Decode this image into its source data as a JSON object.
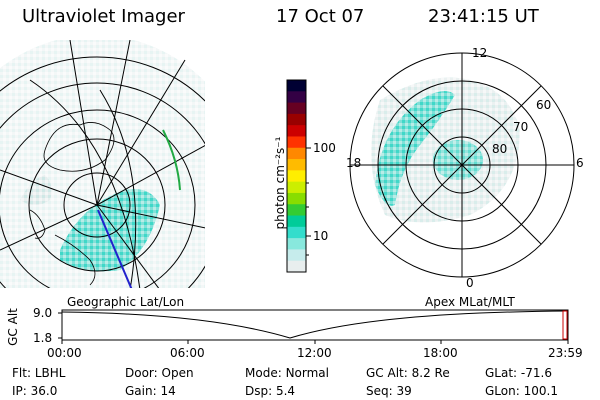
{
  "header": {
    "instrument": "Ultraviolet Imager",
    "date": "17 Oct 07",
    "time": "23:41:15 UT"
  },
  "left_panel": {
    "caption": "Geographic Lat/Lon"
  },
  "right_panel": {
    "caption": "Apex MLat/MLT",
    "mlt_labels": {
      "top": "12",
      "bottom": "0",
      "left": "18",
      "right": "6"
    },
    "lat_labels": [
      "60",
      "70",
      "80"
    ]
  },
  "colorbar": {
    "unit_label": "photon cm⁻²s⁻¹",
    "tick_labels": [
      "100",
      "10"
    ],
    "scale": "log",
    "colors": [
      "#000033",
      "#330044",
      "#660022",
      "#990000",
      "#cc0000",
      "#ff3300",
      "#ff8800",
      "#ffbb00",
      "#ffee00",
      "#ccee00",
      "#88dd00",
      "#33cc33",
      "#00cc99",
      "#33ddcc",
      "#88e8dd",
      "#c6ecec",
      "#e8eeee"
    ]
  },
  "altitude_plot": {
    "ylabel": "GC Alt",
    "y_ticks": [
      "9.0",
      "1.8"
    ],
    "x_ticks": [
      "00:00",
      "06:00",
      "12:00",
      "18:00",
      "23:59"
    ]
  },
  "info": {
    "row1": [
      {
        "label": "Flt:",
        "value": "LBHL"
      },
      {
        "label": "Door:",
        "value": "Open"
      },
      {
        "label": "Mode:",
        "value": "Normal"
      },
      {
        "label": "GC Alt:",
        "value": "8.2 Re"
      },
      {
        "label": "GLat:",
        "value": "-71.6"
      }
    ],
    "row2": [
      {
        "label": "IP:",
        "value": "36.0"
      },
      {
        "label": "Gain:",
        "value": "14"
      },
      {
        "label": "Dsp:",
        "value": "5.4"
      },
      {
        "label": "Seq:",
        "value": "39"
      },
      {
        "label": "GLon:",
        "value": "100.1"
      }
    ]
  },
  "accent_colors": {
    "auroral": "#40d8c8",
    "track": "#2222cc",
    "marker": "#cc0000",
    "oval_edge": "#22aa44"
  }
}
